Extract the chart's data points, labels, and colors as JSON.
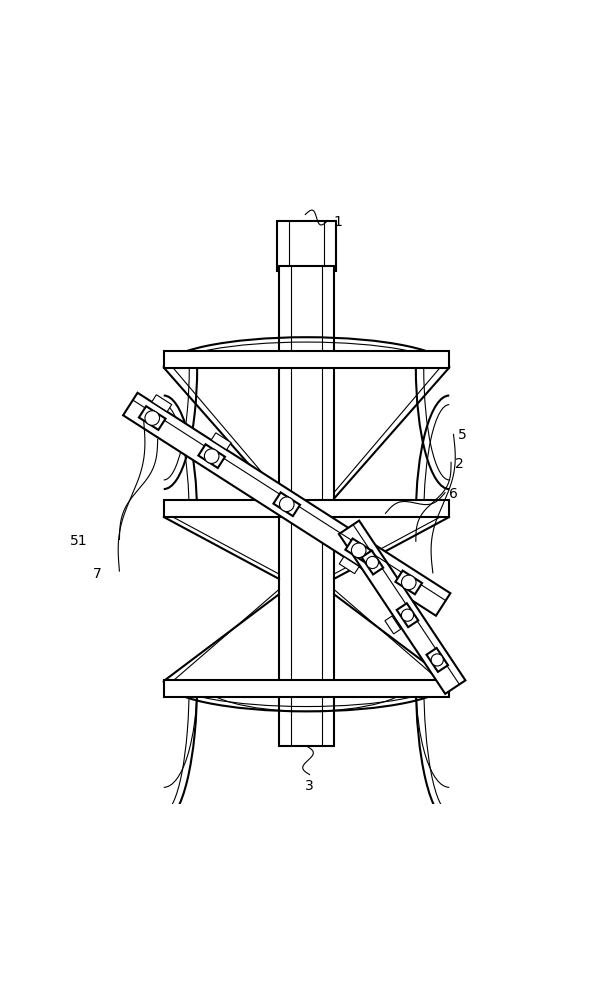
{
  "bg_color": "#ffffff",
  "line_color": "#000000",
  "lw": 1.5,
  "tlw": 0.8,
  "fig_width": 6.13,
  "fig_height": 10.0
}
